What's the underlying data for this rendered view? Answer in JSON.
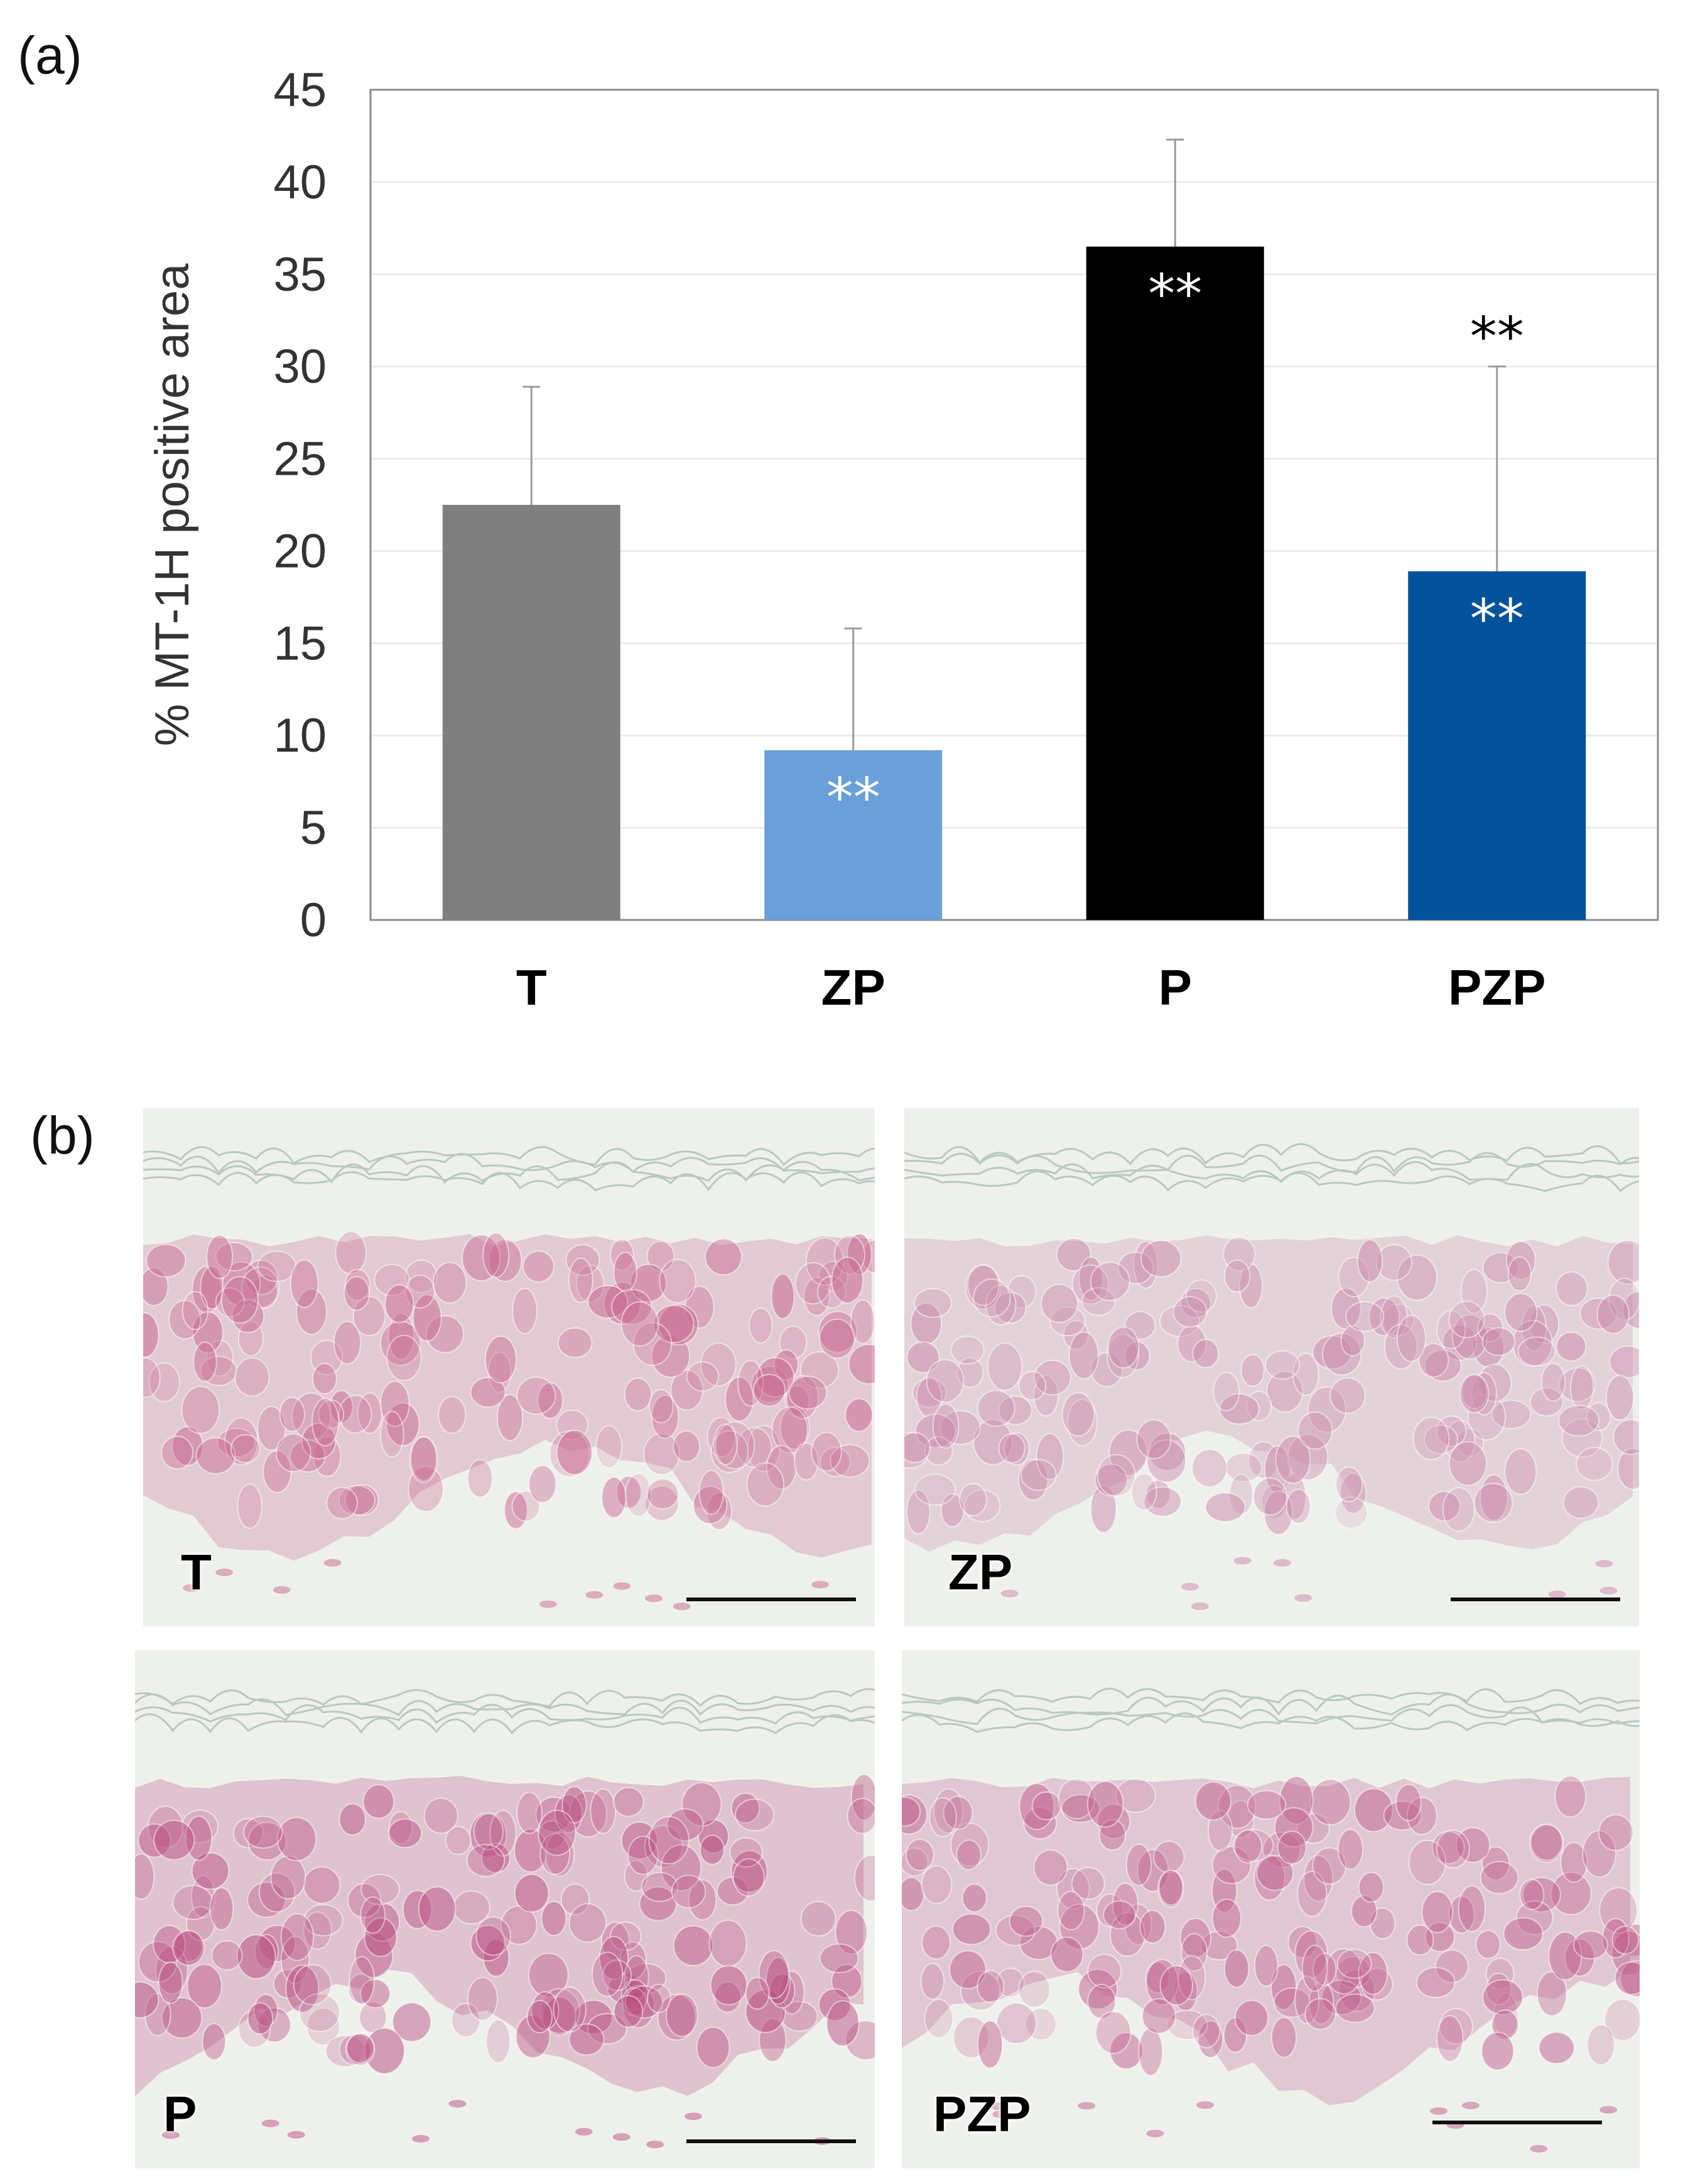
{
  "panels": {
    "a_label": "(a)",
    "b_label": "(b)"
  },
  "chart_data": {
    "type": "bar",
    "categories": [
      "T",
      "ZP",
      "P",
      "PZP"
    ],
    "values": [
      22.5,
      9.2,
      36.5,
      18.9
    ],
    "errors": [
      6.4,
      6.6,
      5.8,
      11.1
    ],
    "ylabel": "% MT-1H positive area",
    "xlabel": "",
    "ylim": [
      0,
      45
    ],
    "yticks": [
      "0",
      "5",
      "10",
      "15",
      "20",
      "25",
      "30",
      "35",
      "40",
      "45"
    ],
    "grid": true,
    "bar_colors": [
      "#7f7f7f",
      "#6a9fd9",
      "#000000",
      "#02529c"
    ],
    "annotations": [
      {
        "category": "ZP",
        "text": "**",
        "position": "inside-top",
        "color": "#ffffff"
      },
      {
        "category": "P",
        "text": "**",
        "position": "inside-top",
        "color": "#ffffff"
      },
      {
        "category": "PZP",
        "text": "**",
        "position": "above-error",
        "color": "#000000"
      },
      {
        "category": "PZP",
        "text": "**",
        "position": "inside-top",
        "color": "#ffffff"
      }
    ]
  },
  "micrographs": [
    {
      "label": "T",
      "stain": "#c7678f"
    },
    {
      "label": "ZP",
      "stain": "#c987a8"
    },
    {
      "label": "P",
      "stain": "#b94f82"
    },
    {
      "label": "PZP",
      "stain": "#c0608e"
    }
  ]
}
